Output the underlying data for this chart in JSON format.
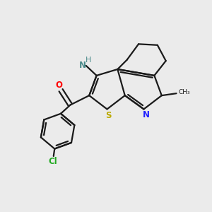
{
  "bg_color": "#ebebeb",
  "bond_color": "#1a1a1a",
  "atom_colors": {
    "O": "#ff0000",
    "N": "#2222ff",
    "S": "#bbaa00",
    "Cl": "#22aa22",
    "NH": "#4a8a8a",
    "H": "#4a8a8a",
    "C": "#1a1a1a"
  },
  "lw": 1.6
}
